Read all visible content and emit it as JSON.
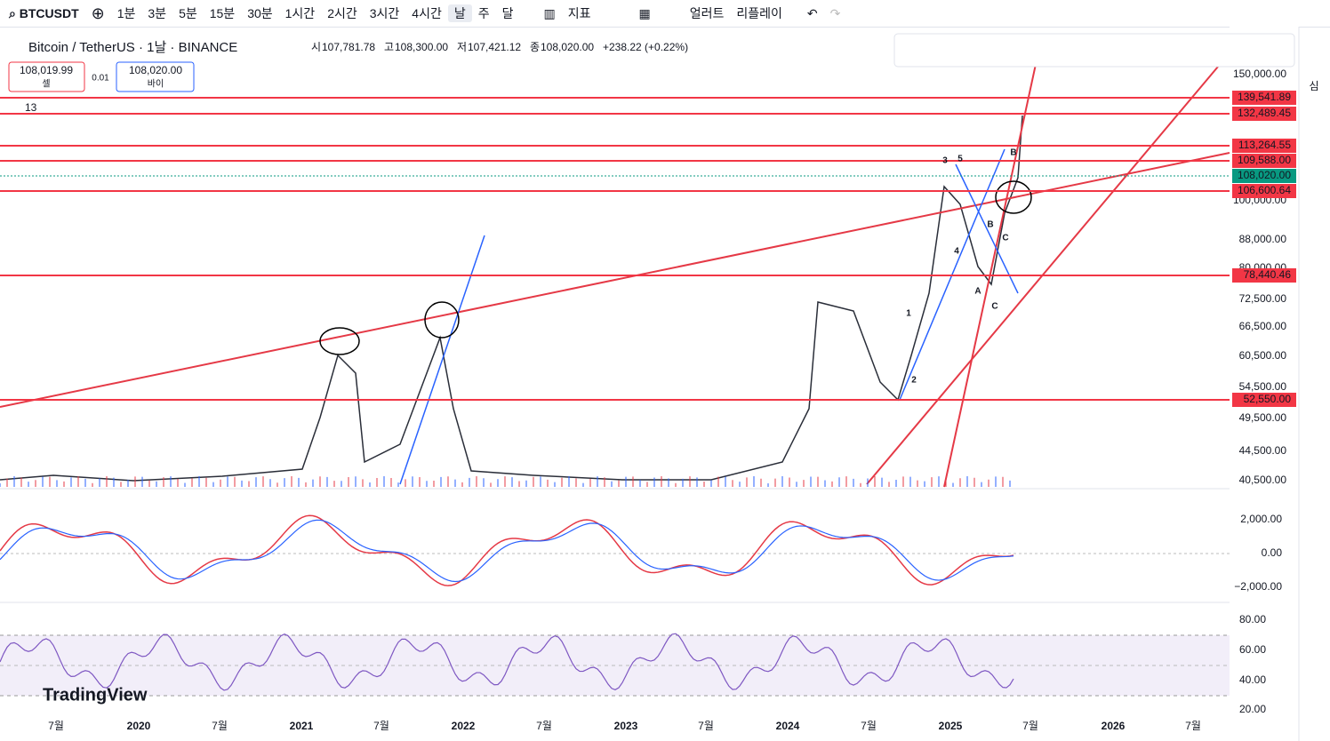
{
  "toolbar": {
    "symbol": "BTCUSDT",
    "intervals": [
      "1분",
      "3분",
      "5분",
      "15분",
      "30분",
      "1시간",
      "2시간",
      "3시간",
      "4시간",
      "날",
      "주",
      "달"
    ],
    "indicators": "지표",
    "alert": "얼러트",
    "replay": "리플레이"
  },
  "header": {
    "title": "Bitcoin / TetherUS · 1날 · BINANCE",
    "ohlc": [
      {
        "label": "시",
        "value": "107,781.78"
      },
      {
        "label": "고",
        "value": "108,300.00"
      },
      {
        "label": "저",
        "value": "107,421.12"
      },
      {
        "label": "종",
        "value": "108,020.00"
      }
    ],
    "change": "+238.22 (+0.22%)"
  },
  "order": {
    "sell_price": "108,019.99",
    "sell_label": "셀",
    "spread": "0.01",
    "buy_price": "108,020.00",
    "buy_label": "바이"
  },
  "indicator_count": "13",
  "price_axis": [
    "150,000.00",
    "100,000.00",
    "88,000.00",
    "80,000.00",
    "72,500.00",
    "66,500.00",
    "60,500.00",
    "54,500.00",
    "49,500.00",
    "44,500.00",
    "40,500.00"
  ],
  "price_tags": [
    "139,541.89",
    "132,489.45",
    "113,264.55",
    "109,588.00",
    "108,020.00",
    "106,600.64",
    "78,440.46",
    "52,550.00"
  ],
  "macd_axis": [
    "2,000.00",
    "0.00",
    "−2,000.00"
  ],
  "rsi_axis": [
    "80.00",
    "60.00",
    "40.00",
    "20.00"
  ],
  "time_axis": [
    "7월",
    "2020",
    "7월",
    "2021",
    "7월",
    "2022",
    "7월",
    "2023",
    "7월",
    "2024",
    "7월",
    "2025",
    "7월",
    "2026",
    "7월"
  ],
  "waves": [
    "1",
    "2",
    "3",
    "4",
    "5",
    "A",
    "B",
    "C",
    "B",
    "C"
  ],
  "logo": "TradingView",
  "side_label": "심"
}
